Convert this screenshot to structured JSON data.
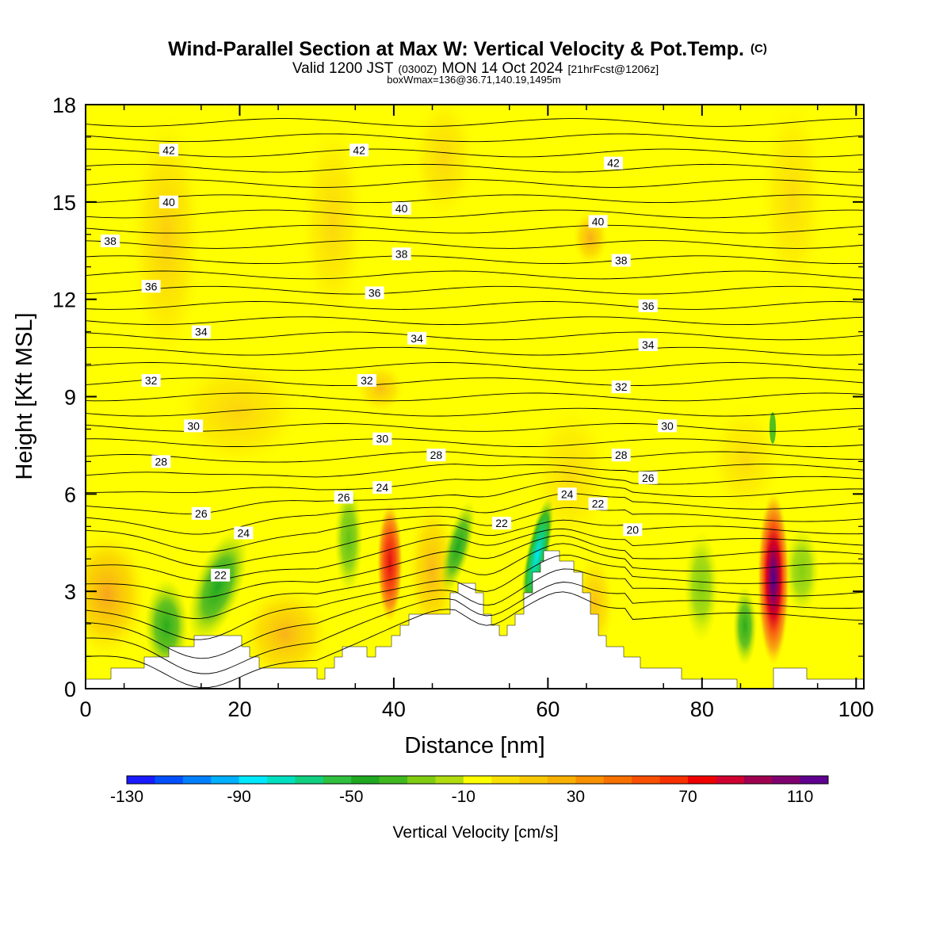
{
  "chart_data": {
    "type": "contour",
    "title": "Wind-Parallel Section at Max W: Vertical Velocity & Pot.Temp.",
    "title_mark": "(C)",
    "subtitle_valid": "Valid 1200 JST",
    "subtitle_utc": "(0300Z)",
    "subtitle_date": "MON 14 Oct 2024",
    "subtitle_fcst": "[21hrFcst@1206z]",
    "subtitle_box": "boxWmax=136@36.71,140.19,1495m",
    "xlabel": "Distance [nm]",
    "ylabel": "Height [Kft MSL]",
    "xlim": [
      0,
      101
    ],
    "ylim": [
      0,
      18
    ],
    "xticks": [
      0,
      20,
      40,
      60,
      80,
      100
    ],
    "yticks": [
      0,
      3,
      6,
      9,
      12,
      15,
      18
    ],
    "colorbar": {
      "label": "Vertical Velocity [cm/s]",
      "ticks": [
        -130,
        -90,
        -50,
        -10,
        30,
        70,
        110
      ],
      "colors": [
        "#1a1aff",
        "#0050ff",
        "#0080ff",
        "#00b0ff",
        "#00e8ff",
        "#00e0c0",
        "#10d080",
        "#30c040",
        "#20a820",
        "#40b820",
        "#80cc10",
        "#b0dc10",
        "#ffff00",
        "#f8e000",
        "#f8c800",
        "#f8b000",
        "#f89000",
        "#f87000",
        "#f85000",
        "#f83000",
        "#f00000",
        "#d00030",
        "#a00050",
        "#800070",
        "#600090"
      ]
    },
    "pot_temp_labels": [
      {
        "v": 42,
        "x": [
          10.8,
          35.5,
          68.5
        ],
        "y": [
          16.6,
          16.6,
          16.2
        ]
      },
      {
        "v": 40,
        "x": [
          10.8,
          41,
          66.5
        ],
        "y": [
          15.0,
          14.8,
          14.4
        ]
      },
      {
        "v": 38,
        "x": [
          3.2,
          41,
          69.5
        ],
        "y": [
          13.8,
          13.4,
          13.2
        ]
      },
      {
        "v": 36,
        "x": [
          8.5,
          37.5,
          73
        ],
        "y": [
          12.4,
          12.2,
          11.8
        ]
      },
      {
        "v": 34,
        "x": [
          15,
          43,
          73
        ],
        "y": [
          11.0,
          10.8,
          10.6
        ]
      },
      {
        "v": 32,
        "x": [
          8.5,
          36.5,
          69.5
        ],
        "y": [
          9.5,
          9.5,
          9.3
        ]
      },
      {
        "v": 30,
        "x": [
          14,
          38.5,
          75.5
        ],
        "y": [
          8.1,
          7.7,
          8.1
        ]
      },
      {
        "v": 28,
        "x": [
          9.8,
          45.5,
          69.5
        ],
        "y": [
          7.0,
          7.2,
          7.2
        ]
      },
      {
        "v": 26,
        "x": [
          15,
          33.5,
          73
        ],
        "y": [
          5.4,
          5.9,
          6.5
        ]
      },
      {
        "v": 24,
        "x": [
          20.5,
          38.5,
          62.5
        ],
        "y": [
          4.8,
          6.2,
          6.0
        ]
      },
      {
        "v": 22,
        "x": [
          17.5,
          54,
          66.5
        ],
        "y": [
          3.5,
          5.1,
          5.7
        ]
      },
      {
        "v": 20,
        "x": [
          71
        ],
        "y": [
          4.9
        ]
      }
    ]
  }
}
